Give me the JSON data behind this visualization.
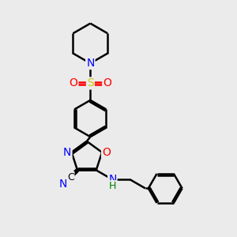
{
  "background_color": "#ebebeb",
  "atom_colors": {
    "N": "#0000ff",
    "O": "#ff0000",
    "S": "#cccc00",
    "C": "#000000",
    "H": "#008000"
  },
  "bond_color": "#000000",
  "bond_width": 1.8,
  "figsize": [
    3.0,
    3.0
  ],
  "dpi": 100,
  "xlim": [
    0,
    10
  ],
  "ylim": [
    0,
    10
  ]
}
